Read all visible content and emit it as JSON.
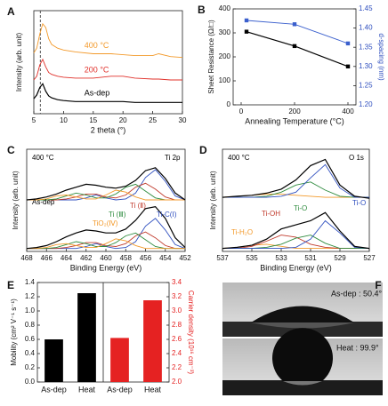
{
  "chart_data": [
    {
      "panel": "A",
      "type": "line",
      "xlabel": "2 theta (°)",
      "ylabel": "Intensity (arb. unit)",
      "xlim": [
        5,
        30
      ],
      "xticks": [
        5,
        10,
        15,
        20,
        25,
        30
      ],
      "ylim": [
        0,
        11
      ],
      "yticks": [],
      "vline": 6.1,
      "x": [
        5,
        5.5,
        6,
        6.5,
        7,
        7.5,
        8,
        9,
        10,
        12,
        15,
        18,
        20,
        22,
        25,
        26,
        28,
        30
      ],
      "series": [
        {
          "name": "400 °C",
          "color": "#f39a2b",
          "values": [
            6.5,
            7.0,
            8.5,
            9.6,
            9.2,
            8.0,
            7.4,
            7.0,
            6.8,
            6.6,
            6.4,
            6.4,
            6.3,
            6.2,
            6.2,
            6.4,
            6.1,
            6.0
          ]
        },
        {
          "name": "200 °C",
          "color": "#e0302a",
          "values": [
            3.6,
            4.0,
            5.2,
            5.8,
            5.0,
            4.4,
            4.2,
            4.0,
            3.9,
            3.8,
            3.8,
            4.0,
            4.0,
            3.8,
            3.7,
            3.7,
            3.6,
            3.6
          ]
        },
        {
          "name": "As-dep",
          "color": "#000000",
          "values": [
            1.6,
            2.0,
            2.8,
            3.2,
            2.4,
            1.9,
            1.7,
            1.5,
            1.4,
            1.3,
            1.3,
            1.3,
            1.3,
            1.2,
            1.2,
            1.2,
            1.2,
            1.2
          ]
        }
      ]
    },
    {
      "panel": "B",
      "type": "line",
      "markers": true,
      "xlabel": "Annealing Temperature (°C)",
      "ylabel": "Sheet Resistance (Ω/□)",
      "y2label": "d-spacing (nm)",
      "xlim": [
        -30,
        430
      ],
      "xticks": [
        0,
        200,
        400
      ],
      "ylim": [
        0,
        400
      ],
      "yticks": [
        0,
        100,
        200,
        300,
        400
      ],
      "y2lim": [
        1.2,
        1.45
      ],
      "y2ticks": [
        {
          "value": 1.2,
          "label": "1.20"
        },
        1.25,
        {
          "value": 1.3,
          "label": "1.30"
        },
        1.35,
        {
          "value": 1.4,
          "label": "1.40"
        },
        1.45
      ],
      "x": [
        20,
        200,
        400
      ],
      "series": [
        {
          "color": "#000000",
          "values": [
            305,
            245,
            160
          ]
        },
        {
          "color": "#3a5fcd",
          "axis": "y2",
          "values": [
            1.42,
            1.41,
            1.36
          ]
        }
      ]
    },
    {
      "panel": "C",
      "type": "line",
      "xlabel": "Binding Energy (eV)",
      "ylabel": "Intensity (arb. unit)",
      "xlim": [
        468,
        452
      ],
      "xticks": [
        468,
        466,
        464,
        462,
        460,
        458,
        456,
        454,
        452
      ],
      "ylim": [
        0,
        10.5
      ],
      "yticks": [],
      "annotations": [
        {
          "text": "400 °C",
          "color": "#000000"
        },
        {
          "text": "Ti 2p",
          "color": "#000000"
        },
        {
          "text": "As-dep",
          "color": "#000000"
        },
        {
          "text": "Ti (Ⅱ)",
          "color": "#c0392b"
        },
        {
          "text": "Ti (Ⅲ)",
          "color": "#2e8b3e"
        },
        {
          "text": "TiO₂(Ⅳ)",
          "color": "#f39a2b"
        },
        {
          "text": "Ti-C(Ⅰ)",
          "color": "#2f4fbf"
        }
      ],
      "x": [
        468,
        467,
        466,
        465,
        464,
        463,
        462,
        461,
        460,
        459,
        458,
        457,
        456,
        455,
        454,
        453,
        452
      ],
      "series": [
        {
          "color": "#2f4fbf",
          "values": [
            5.3,
            5.3,
            5.3,
            5.3,
            5.3,
            5.3,
            5.5,
            5.8,
            5.5,
            5.3,
            5.4,
            6.0,
            7.6,
            8.4,
            7.2,
            5.7,
            5.3
          ]
        },
        {
          "color": "#c0392b",
          "values": [
            5.3,
            5.3,
            5.3,
            5.3,
            5.4,
            5.6,
            5.9,
            5.9,
            5.6,
            5.5,
            5.8,
            6.6,
            7.0,
            6.4,
            5.6,
            5.3,
            5.3
          ]
        },
        {
          "color": "#2e8b3e",
          "values": [
            5.3,
            5.3,
            5.3,
            5.4,
            5.7,
            6.0,
            5.8,
            5.5,
            5.5,
            5.9,
            6.6,
            6.9,
            6.2,
            5.5,
            5.3,
            5.3,
            5.3
          ]
        },
        {
          "color": "#f39a2b",
          "values": [
            5.3,
            5.3,
            5.4,
            5.7,
            5.8,
            5.6,
            5.4,
            5.4,
            5.8,
            6.3,
            6.1,
            5.6,
            5.3,
            5.3,
            5.3,
            5.3,
            5.3
          ]
        },
        {
          "color": "#000000",
          "values": [
            5.3,
            5.4,
            5.6,
            5.9,
            6.3,
            6.6,
            6.9,
            6.8,
            6.6,
            6.5,
            6.7,
            7.3,
            8.3,
            8.6,
            7.5,
            6.0,
            5.3
          ]
        },
        {
          "color": "#2f4fbf",
          "values": [
            0.3,
            0.3,
            0.3,
            0.3,
            0.3,
            0.3,
            0.5,
            0.8,
            0.5,
            0.3,
            0.4,
            1.0,
            2.6,
            3.4,
            2.2,
            0.7,
            0.3
          ]
        },
        {
          "color": "#c0392b",
          "values": [
            0.3,
            0.3,
            0.3,
            0.3,
            0.4,
            0.6,
            0.9,
            0.9,
            0.6,
            0.5,
            0.8,
            1.6,
            2.0,
            1.4,
            0.6,
            0.3,
            0.3
          ]
        },
        {
          "color": "#2e8b3e",
          "values": [
            0.3,
            0.3,
            0.3,
            0.4,
            0.7,
            1.0,
            0.8,
            0.5,
            0.5,
            0.9,
            1.6,
            1.9,
            1.2,
            0.5,
            0.3,
            0.3,
            0.3
          ]
        },
        {
          "color": "#f39a2b",
          "values": [
            0.3,
            0.3,
            0.4,
            0.7,
            0.8,
            0.6,
            0.4,
            0.4,
            0.8,
            1.3,
            1.1,
            0.6,
            0.3,
            0.3,
            0.3,
            0.3,
            0.3
          ]
        },
        {
          "color": "#000000",
          "values": [
            0.3,
            0.4,
            0.6,
            1.0,
            1.5,
            1.9,
            2.2,
            2.1,
            1.9,
            1.9,
            2.3,
            3.2,
            4.4,
            4.6,
            3.4,
            1.4,
            0.4
          ]
        }
      ]
    },
    {
      "panel": "D",
      "type": "line",
      "xlabel": "Binding Energy (eV)",
      "ylabel": "Intensity (arb. unit)",
      "xlim": [
        537,
        527
      ],
      "xticks": [
        537,
        535,
        533,
        531,
        529,
        527
      ],
      "ylim": [
        0,
        10
      ],
      "yticks": [],
      "annotations": [
        {
          "text": "400 °C",
          "color": "#000000"
        },
        {
          "text": "O 1s",
          "color": "#000000"
        },
        {
          "text": "Ti-O",
          "color": "#2f4fbf"
        },
        {
          "text": "Ti-O",
          "color": "#2e8b3e"
        },
        {
          "text": "Ti-OH",
          "color": "#c0392b"
        },
        {
          "text": "Ti-H₂O",
          "color": "#f39a2b"
        }
      ],
      "x": [
        537,
        536,
        535,
        534,
        533,
        532,
        531,
        530,
        529,
        528,
        527
      ],
      "series": [
        {
          "color": "#f39a2b",
          "values": [
            5.3,
            5.4,
            5.5,
            5.6,
            5.6,
            5.5,
            5.4,
            5.3,
            5.3,
            5.3,
            5.3
          ]
        },
        {
          "color": "#2e8b3e",
          "values": [
            5.3,
            5.3,
            5.3,
            5.4,
            5.8,
            6.5,
            6.8,
            6.0,
            5.4,
            5.3,
            5.3
          ]
        },
        {
          "color": "#2f4fbf",
          "values": [
            5.3,
            5.3,
            5.3,
            5.3,
            5.4,
            5.8,
            7.2,
            8.5,
            6.2,
            5.3,
            5.3
          ]
        },
        {
          "color": "#000000",
          "values": [
            5.3,
            5.4,
            5.5,
            5.7,
            6.1,
            7.0,
            8.4,
            9.0,
            6.5,
            5.4,
            5.2
          ]
        },
        {
          "color": "#f39a2b",
          "values": [
            0.3,
            0.4,
            0.6,
            0.7,
            0.5,
            0.3,
            0.3,
            0.3,
            0.3,
            0.3,
            0.3
          ]
        },
        {
          "color": "#c0392b",
          "values": [
            0.3,
            0.3,
            0.5,
            1.0,
            1.6,
            1.4,
            0.7,
            0.4,
            0.3,
            0.3,
            0.3
          ]
        },
        {
          "color": "#2e8b3e",
          "values": [
            0.3,
            0.3,
            0.3,
            0.4,
            0.7,
            1.3,
            1.6,
            0.8,
            0.3,
            0.3,
            0.3
          ]
        },
        {
          "color": "#2f4fbf",
          "values": [
            0.3,
            0.3,
            0.3,
            0.3,
            0.3,
            0.4,
            1.2,
            3.0,
            1.8,
            0.4,
            0.3
          ]
        },
        {
          "color": "#000000",
          "values": [
            0.3,
            0.4,
            0.6,
            1.2,
            2.2,
            2.6,
            3.0,
            3.8,
            2.0,
            0.5,
            0.3
          ]
        }
      ]
    },
    {
      "panel": "E",
      "type": "bar",
      "ylabel": "Mobility (cm² V⁻¹ s⁻¹)",
      "y2label": "Carrier density (10¹⁶ cm⁻³)",
      "categories": [
        "As-dep",
        "Heat",
        "As-dep",
        "Heat"
      ],
      "ylim": [
        0,
        1.4
      ],
      "yticks": [
        {
          "value": 0,
          "label": "0.0"
        },
        0.2,
        0.4,
        0.6,
        0.8,
        {
          "value": 1,
          "label": "1.0"
        },
        1.2,
        1.4
      ],
      "y2lim": [
        2,
        3.4
      ],
      "y2ticks": [
        {
          "value": 2,
          "label": "2.0"
        },
        2.2,
        2.4,
        2.6,
        2.8,
        {
          "value": 3,
          "label": "3.0"
        },
        3.2,
        3.4
      ],
      "series": [
        {
          "color": "#000000",
          "values": [
            0.6,
            1.25,
            null,
            null
          ]
        },
        {
          "color": "#e52222",
          "axis": "y2",
          "values": [
            null,
            null,
            2.62,
            3.15
          ]
        }
      ]
    }
  ],
  "contact_angle": {
    "panel": "F",
    "images": [
      "As-dep : 50.4°",
      "Heat : 99.9°"
    ]
  }
}
